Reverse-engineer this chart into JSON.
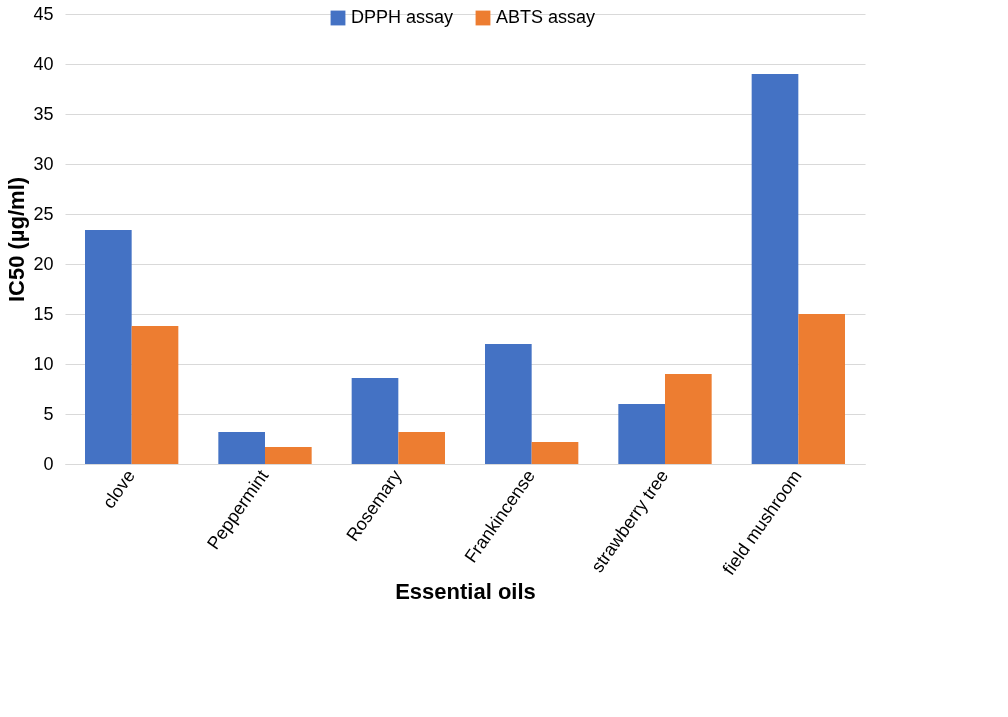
{
  "chart_data": {
    "type": "bar",
    "xlabel": "Essential oils",
    "ylabel": "IC50 (µg/ml)",
    "categories": [
      "clove",
      "Peppermint",
      "Rosemary",
      "Frankincense",
      "strawberry tree",
      "field mushroom"
    ],
    "series": [
      {
        "name": "DPPH assay",
        "color": "#4472c4",
        "values": [
          23.4,
          3.2,
          8.6,
          12.0,
          6.0,
          39.0
        ]
      },
      {
        "name": "ABTS assay",
        "color": "#ed7d31",
        "values": [
          13.8,
          1.7,
          3.2,
          2.2,
          9.0,
          15.0
        ]
      }
    ],
    "ylim": [
      0,
      45
    ],
    "yticks": [
      0,
      5,
      10,
      15,
      20,
      25,
      30,
      35,
      40,
      45
    ],
    "grid": "y",
    "legend": "top"
  }
}
